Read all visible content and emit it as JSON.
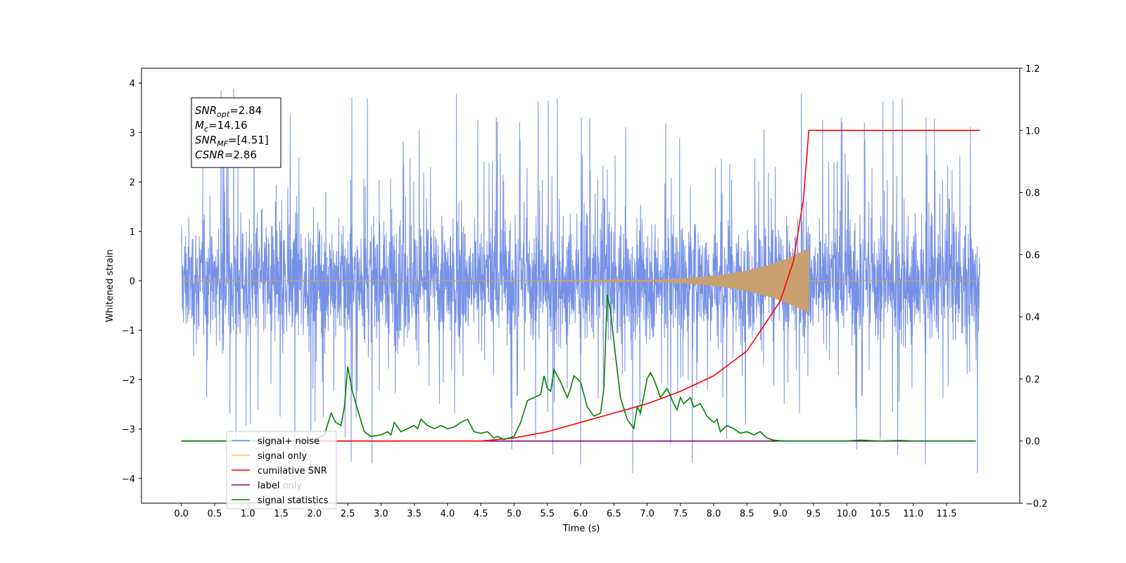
{
  "chart_data": {
    "type": "line",
    "xlabel": "Time (s)",
    "ylabel": "Whitened strain",
    "xlim": [
      -0.6,
      12.6
    ],
    "ylim": [
      -4.5,
      4.3
    ],
    "y2lim": [
      -0.2,
      1.2
    ],
    "grid": false,
    "legend_position": "lower-left",
    "x_ticks": [
      "0.0",
      "0.5",
      "1.0",
      "1.5",
      "2.0",
      "2.5",
      "3.0",
      "3.5",
      "4.0",
      "4.5",
      "5.0",
      "5.5",
      "6.0",
      "6.5",
      "7.0",
      "7.5",
      "8.0",
      "8.5",
      "9.0",
      "9.5",
      "10.0",
      "10.5",
      "11.0",
      "11.5"
    ],
    "y_ticks": [
      4,
      3,
      2,
      1,
      0,
      -1,
      -2,
      -3,
      -4
    ],
    "y2_ticks": [
      "1.2",
      "1.0",
      "0.8",
      "0.6",
      "0.4",
      "0.2",
      "0.0",
      "−0.2"
    ],
    "annotation_lines": [
      {
        "base": "SNR",
        "sub": "opt",
        "rest": "=2.84"
      },
      {
        "base": "M",
        "sub": "c",
        "rest": "=14.16"
      },
      {
        "base": "SNR",
        "sub": "MF",
        "rest": "=[4.51]"
      },
      {
        "base": "CSNR",
        "sub": "",
        "rest": "=2.86"
      }
    ],
    "legend": [
      {
        "label": "signal+ noise",
        "color": "#6f8ce6"
      },
      {
        "label": "signal only",
        "color": "#ffc35a"
      },
      {
        "label": "cumilative SNR",
        "color": "#ff0000"
      },
      {
        "label": "label",
        "color": "#800080"
      },
      {
        "label": "signal statistics",
        "color": "#008000"
      }
    ],
    "hidden_legend_text": "label only",
    "series": [
      {
        "name": "signal+ noise",
        "axis": "left",
        "color": "#6f8ce6",
        "x_start": 0.0,
        "x_end": 12.0,
        "y_envelope_typical": [
          -1.5,
          1.7
        ],
        "y_extremes": [
          -4.1,
          3.9
        ]
      },
      {
        "name": "signal only",
        "axis": "left",
        "color": "#c8a070",
        "x_start": 0.0,
        "x_end": 12.0,
        "chirp_end_x": 9.43,
        "peak_amplitude": 0.65
      },
      {
        "name": "cumilative SNR",
        "axis": "right",
        "color": "#ff0000",
        "x": [
          0.0,
          4.5,
          5.0,
          5.5,
          6.0,
          6.5,
          7.0,
          7.5,
          8.0,
          8.5,
          9.0,
          9.2,
          9.35,
          9.43,
          9.44,
          12.0
        ],
        "y": [
          0.0,
          0.0,
          0.01,
          0.03,
          0.06,
          0.09,
          0.12,
          0.16,
          0.21,
          0.29,
          0.45,
          0.58,
          0.78,
          1.0,
          1.0,
          1.0
        ]
      },
      {
        "name": "label",
        "axis": "right",
        "color": "#800080",
        "x": [
          0.0,
          11.94
        ],
        "y": [
          0.0,
          0.0
        ]
      },
      {
        "name": "signal statistics",
        "axis": "right",
        "color": "#008000",
        "x": [
          0.0,
          1.8,
          2.0,
          2.15,
          2.25,
          2.32,
          2.4,
          2.45,
          2.5,
          2.57,
          2.65,
          2.75,
          2.85,
          3.0,
          3.1,
          3.15,
          3.2,
          3.3,
          3.4,
          3.5,
          3.55,
          3.6,
          3.7,
          3.8,
          3.9,
          4.0,
          4.1,
          4.2,
          4.3,
          4.4,
          4.5,
          4.6,
          4.7,
          4.75,
          4.85,
          5.0,
          5.1,
          5.2,
          5.3,
          5.4,
          5.45,
          5.5,
          5.55,
          5.6,
          5.7,
          5.8,
          5.85,
          5.9,
          6.0,
          6.1,
          6.2,
          6.3,
          6.35,
          6.4,
          6.45,
          6.5,
          6.6,
          6.7,
          6.8,
          6.85,
          6.9,
          7.0,
          7.05,
          7.1,
          7.2,
          7.3,
          7.4,
          7.45,
          7.5,
          7.55,
          7.6,
          7.65,
          7.7,
          7.8,
          7.9,
          8.0,
          8.05,
          8.1,
          8.2,
          8.3,
          8.4,
          8.5,
          8.6,
          8.7,
          8.8,
          8.9,
          9.0,
          9.1,
          9.5,
          10.0,
          10.2,
          10.5,
          10.8,
          11.0,
          11.94
        ],
        "y": [
          0.0,
          0.0,
          0.005,
          0.02,
          0.09,
          0.06,
          0.05,
          0.11,
          0.24,
          0.16,
          0.1,
          0.03,
          0.015,
          0.02,
          0.03,
          0.02,
          0.06,
          0.03,
          0.04,
          0.05,
          0.04,
          0.07,
          0.05,
          0.04,
          0.05,
          0.04,
          0.045,
          0.06,
          0.07,
          0.03,
          0.025,
          0.03,
          0.01,
          0.015,
          0.005,
          0.015,
          0.06,
          0.13,
          0.14,
          0.15,
          0.21,
          0.17,
          0.16,
          0.23,
          0.19,
          0.14,
          0.17,
          0.21,
          0.19,
          0.11,
          0.08,
          0.09,
          0.17,
          0.47,
          0.42,
          0.32,
          0.14,
          0.07,
          0.04,
          0.11,
          0.09,
          0.2,
          0.22,
          0.2,
          0.14,
          0.17,
          0.12,
          0.1,
          0.14,
          0.12,
          0.13,
          0.14,
          0.11,
          0.12,
          0.08,
          0.06,
          0.07,
          0.03,
          0.05,
          0.04,
          0.025,
          0.03,
          0.02,
          0.03,
          0.01,
          0.003,
          0.001,
          0.0,
          0.0,
          0.0,
          0.003,
          0.0,
          0.002,
          0.0,
          0.0
        ]
      }
    ]
  }
}
